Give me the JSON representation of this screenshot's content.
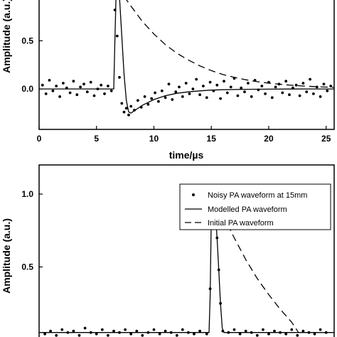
{
  "chart_data": [
    {
      "type": "scatter",
      "title": "",
      "xlabel": "time/µs",
      "ylabel": "Amplitude (a.u.)",
      "xlim": [
        0,
        25.7
      ],
      "ylim": [
        -0.42,
        0.96
      ],
      "xticks": [
        0,
        5,
        10,
        15,
        20,
        25
      ],
      "yticks": [
        0.0,
        0.5
      ],
      "ytick_labels": [
        "0.0",
        "0.5"
      ],
      "legend": "none",
      "grid": false,
      "series": [
        {
          "style": "markers",
          "x": [
            0.3,
            0.6,
            0.9,
            1.2,
            1.5,
            1.8,
            2.1,
            2.4,
            2.7,
            3.0,
            3.3,
            3.6,
            3.9,
            4.2,
            4.5,
            4.8,
            5.1,
            5.4,
            5.7,
            6.0,
            6.3,
            6.6,
            6.8,
            7.0,
            7.2,
            7.4,
            7.6,
            7.8,
            8.0,
            8.3,
            8.6,
            8.9,
            9.2,
            9.5,
            9.8,
            10.1,
            10.4,
            10.7,
            11.0,
            11.3,
            11.6,
            11.9,
            12.2,
            12.5,
            12.8,
            13.1,
            13.4,
            13.7,
            14.0,
            14.3,
            14.6,
            14.9,
            15.2,
            15.5,
            15.8,
            16.1,
            16.4,
            16.7,
            17.0,
            17.3,
            17.6,
            17.9,
            18.2,
            18.5,
            18.8,
            19.1,
            19.4,
            19.7,
            20.0,
            20.3,
            20.6,
            20.9,
            21.2,
            21.5,
            21.8,
            22.1,
            22.4,
            22.7,
            23.0,
            23.3,
            23.6,
            23.9,
            24.2,
            24.5,
            24.8,
            25.1,
            25.4
          ],
          "y": [
            0.04,
            -0.05,
            0.09,
            -0.02,
            0.03,
            -0.08,
            0.06,
            0.01,
            -0.04,
            0.08,
            -0.06,
            0.02,
            0.05,
            -0.03,
            0.07,
            -0.07,
            0.0,
            0.04,
            -0.05,
            0.03,
            -0.02,
            0.82,
            0.55,
            0.12,
            -0.15,
            -0.24,
            -0.2,
            -0.27,
            -0.18,
            -0.22,
            -0.12,
            -0.19,
            -0.08,
            -0.16,
            -0.1,
            -0.04,
            -0.13,
            -0.02,
            -0.09,
            0.05,
            -0.11,
            -0.03,
            0.02,
            -0.08,
            0.06,
            -0.05,
            0.0,
            0.1,
            -0.06,
            0.03,
            -0.09,
            0.07,
            -0.02,
            0.04,
            -0.1,
            0.08,
            -0.04,
            0.02,
            0.11,
            -0.07,
            0.01,
            -0.03,
            0.06,
            -0.08,
            0.09,
            -0.01,
            0.03,
            -0.05,
            0.07,
            -0.09,
            0.02,
            0.05,
            -0.04,
            0.08,
            -0.06,
            0.01,
            0.04,
            -0.07,
            0.06,
            -0.03,
            0.1,
            -0.05,
            0.02,
            -0.08,
            0.05,
            -0.02,
            0.03
          ]
        },
        {
          "style": "solid",
          "x": [
            0,
            1,
            2,
            3,
            4,
            5,
            6,
            6.5,
            6.6,
            6.7,
            6.8,
            6.9,
            7.0,
            7.2,
            7.4,
            7.6,
            7.8,
            8.0,
            8.5,
            9.0,
            9.5,
            10,
            11,
            12,
            13,
            14,
            15,
            16,
            18,
            20,
            22,
            24,
            25.7
          ],
          "y": [
            0.0,
            0.0,
            0.0,
            0.0,
            0.0,
            0.0,
            0.0,
            0.0,
            0.5,
            0.96,
            0.96,
            0.96,
            0.96,
            0.55,
            0.15,
            -0.12,
            -0.24,
            -0.25,
            -0.21,
            -0.17,
            -0.14,
            -0.11,
            -0.07,
            -0.045,
            -0.03,
            -0.02,
            -0.012,
            -0.008,
            -0.004,
            -0.002,
            -0.001,
            0.0,
            0.0
          ]
        },
        {
          "style": "dashed",
          "x": [
            7.4,
            8,
            9,
            10,
            11,
            12,
            13,
            14,
            15,
            16,
            17,
            18,
            19,
            20,
            21,
            22,
            23,
            24,
            25,
            25.7
          ],
          "y": [
            0.96,
            0.86,
            0.7,
            0.57,
            0.46,
            0.37,
            0.3,
            0.24,
            0.19,
            0.15,
            0.12,
            0.095,
            0.075,
            0.06,
            0.048,
            0.038,
            0.03,
            0.024,
            0.019,
            0.016
          ]
        }
      ]
    },
    {
      "type": "scatter",
      "title": "",
      "xlabel": "",
      "ylabel": "Amplitude (a.u.)",
      "xlim": [
        0,
        25.7
      ],
      "ylim": [
        -0.02,
        1.2
      ],
      "yticks": [
        0.5,
        1.0
      ],
      "ytick_labels": [
        "0.5",
        "1.0"
      ],
      "legend": "top-right",
      "grid": false,
      "series": [
        {
          "name": "Noisy PA waveform at 15mm",
          "style": "markers",
          "x": [
            0.5,
            1.0,
            1.5,
            2.0,
            2.5,
            3.0,
            3.5,
            4.0,
            4.5,
            5.0,
            5.5,
            6.0,
            6.5,
            7.0,
            7.5,
            8.0,
            8.5,
            9.0,
            9.5,
            10.0,
            10.5,
            11.0,
            11.5,
            12.0,
            12.5,
            13.0,
            13.5,
            14.0,
            14.6,
            14.9,
            15.05,
            15.2,
            15.35,
            15.5,
            15.65,
            15.8,
            16.0,
            16.5,
            17.0,
            17.5,
            18.0,
            18.5,
            19.0,
            19.5,
            20.0,
            20.5,
            21.0,
            21.5,
            22.0,
            22.5,
            23.0,
            23.5,
            24.0,
            24.5,
            25.0
          ],
          "y": [
            0.04,
            0.06,
            0.03,
            0.07,
            0.05,
            0.06,
            0.03,
            0.08,
            0.05,
            0.04,
            0.07,
            0.03,
            0.06,
            0.05,
            0.07,
            0.04,
            0.06,
            0.03,
            0.05,
            0.07,
            0.04,
            0.06,
            0.05,
            0.03,
            0.07,
            0.05,
            0.04,
            0.06,
            0.04,
            0.35,
            1.0,
            0.97,
            0.88,
            0.7,
            0.48,
            0.25,
            0.06,
            0.05,
            0.07,
            0.04,
            0.06,
            0.05,
            0.03,
            0.07,
            0.04,
            0.06,
            0.05,
            0.04,
            0.07,
            0.03,
            0.06,
            0.05,
            0.04,
            0.07,
            0.05
          ]
        },
        {
          "name": "Modelled PA waveform",
          "style": "solid",
          "x": [
            0,
            5,
            10,
            14.8,
            14.9,
            15.0,
            15.05,
            15.2,
            15.35,
            15.5,
            15.65,
            15.8,
            15.95,
            16.1,
            17,
            20,
            25.7
          ],
          "y": [
            0.05,
            0.05,
            0.05,
            0.05,
            0.3,
            0.85,
            1.0,
            0.97,
            0.88,
            0.7,
            0.48,
            0.25,
            0.08,
            0.05,
            0.05,
            0.05,
            0.05
          ]
        },
        {
          "name": "Initial PA waveform",
          "style": "dashed",
          "x": [
            15.05,
            16,
            17,
            18,
            19,
            20,
            21,
            22,
            22.6
          ],
          "y": [
            1.0,
            0.86,
            0.7,
            0.55,
            0.42,
            0.31,
            0.21,
            0.12,
            0.05
          ]
        }
      ]
    }
  ]
}
